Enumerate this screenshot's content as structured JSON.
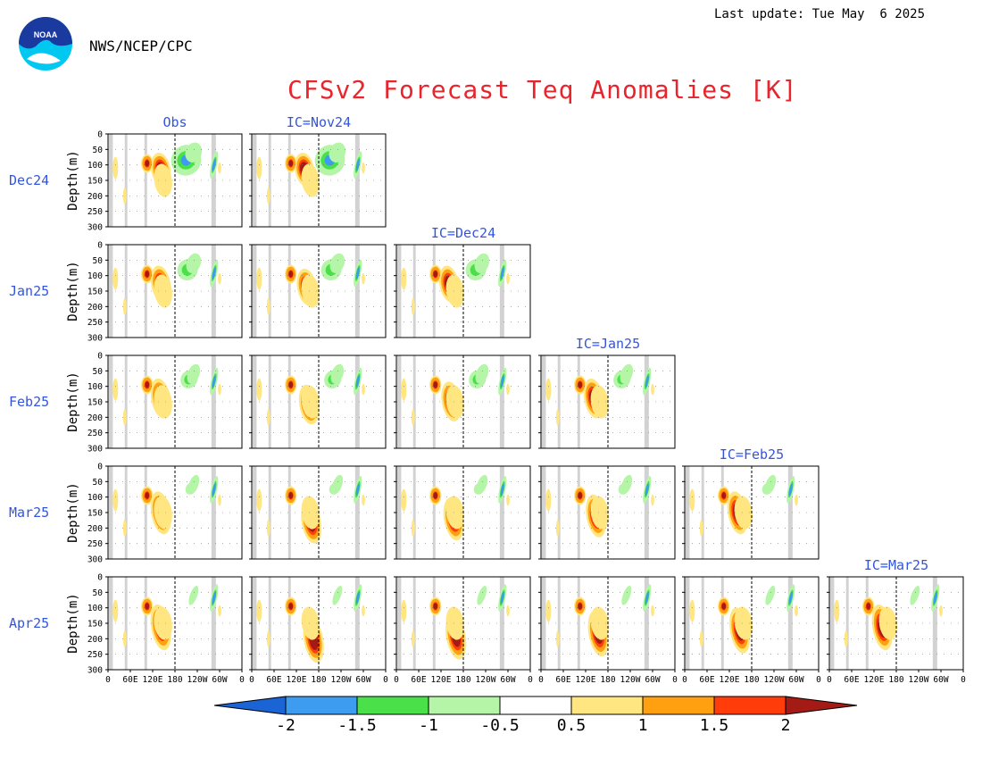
{
  "header": {
    "last_update": "Last update: Tue May  6 2025",
    "org": "NWS/NCEP/CPC",
    "title": "CFSv2 Forecast Teq Anomalies [K]",
    "logo_text": "NOAA"
  },
  "chart_data": {
    "type": "heatmap",
    "title": "CFSv2 Forecast Teq Anomalies [K]",
    "ylabel": "Depth(m)",
    "yticks": [
      "0",
      "50",
      "100",
      "150",
      "200",
      "250",
      "300"
    ],
    "ylim": [
      300,
      0
    ],
    "xticks": [
      "0",
      "60E",
      "120E",
      "180",
      "120W",
      "60W",
      "0"
    ],
    "xlim": [
      0,
      360
    ],
    "columns": [
      "Obs",
      "IC=Nov24",
      "IC=Dec24",
      "IC=Jan25",
      "IC=Feb25",
      "IC=Mar25"
    ],
    "rows": [
      "Dec24",
      "Jan25",
      "Feb25",
      "Mar25",
      "Apr25"
    ],
    "colorbar": {
      "levels": [
        "-2",
        "-1.5",
        "-1",
        "-0.5",
        "0.5",
        "1",
        "1.5",
        "2"
      ],
      "colors": {
        "lt_-2": "#1a64d6",
        "-2_-1.5": "#3d9bf0",
        "-1.5_-1": "#4ae04a",
        "-1_-0.5": "#b4f5a8",
        "-0.5_0.5": "#ffffff",
        "0.5_1": "#ffe680",
        "1_1.5": "#ffa010",
        "1.5_2": "#ff3c0a",
        "gt_2": "#a41a14"
      }
    },
    "colors": {
      "land_mask": "#d2d2d2",
      "dateline": "#000000",
      "label": "#3355dd"
    }
  }
}
